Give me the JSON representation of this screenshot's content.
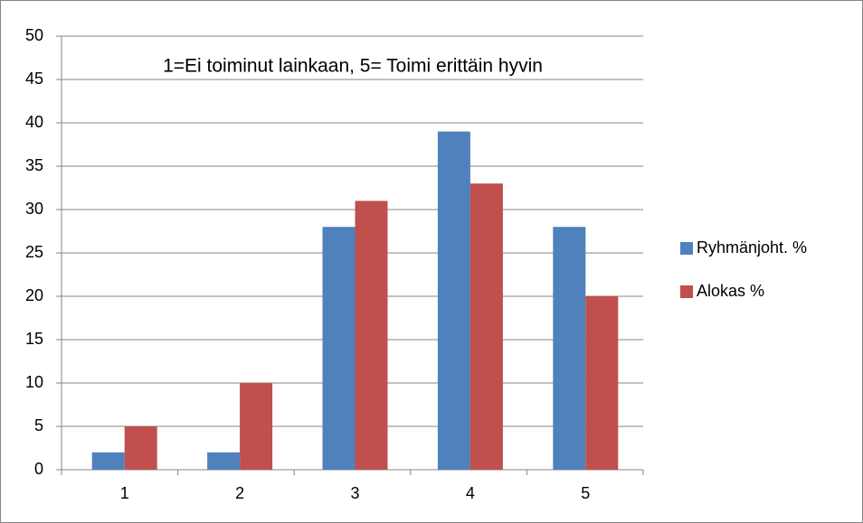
{
  "chart_data": {
    "type": "bar",
    "annotation": "1=Ei toiminut lainkaan, 5= Toimi erittäin hyvin",
    "categories": [
      "1",
      "2",
      "3",
      "4",
      "5"
    ],
    "series": [
      {
        "name": "Ryhmänjoht. %",
        "color": "#4f81bd",
        "values": [
          2,
          2,
          28,
          39,
          28
        ]
      },
      {
        "name": "Alokas %",
        "color": "#c0504d",
        "values": [
          5,
          10,
          31,
          33,
          20
        ]
      }
    ],
    "ylim": [
      0,
      50
    ],
    "yticks": [
      0,
      5,
      10,
      15,
      20,
      25,
      30,
      35,
      40,
      45,
      50
    ],
    "grid": true,
    "legend": "right"
  }
}
